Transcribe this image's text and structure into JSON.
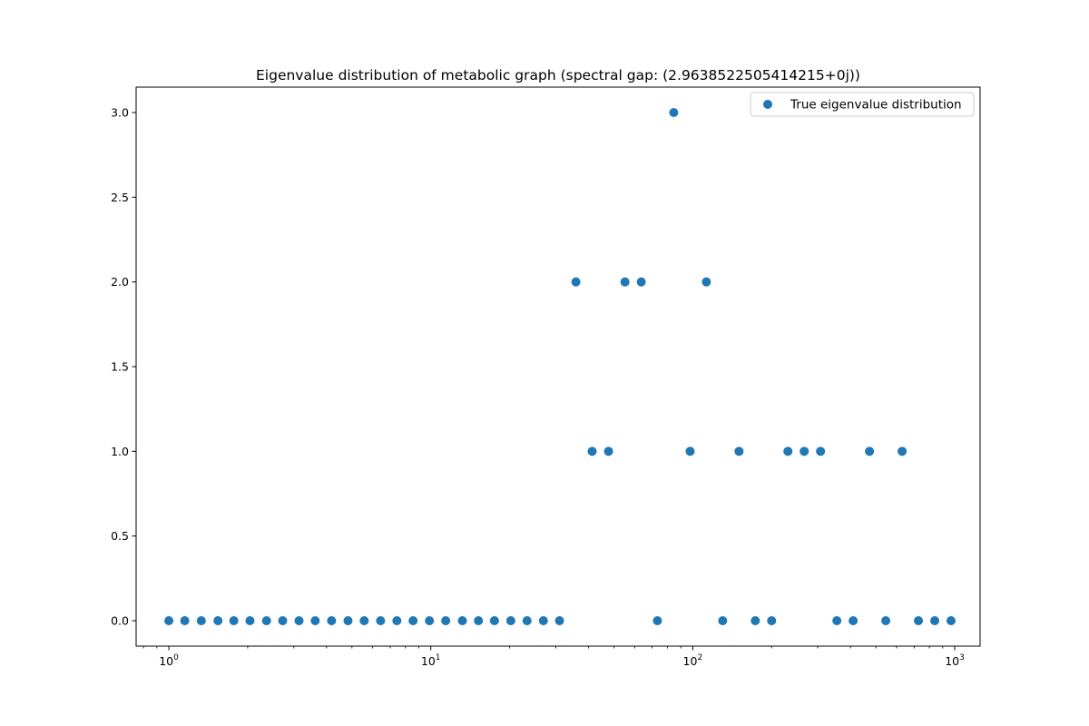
{
  "chart_data": {
    "type": "scatter",
    "title": "Eigenvalue distribution of metabolic graph (spectral gap: (2.9638522505414215+0j))",
    "xlabel": "",
    "ylabel": "",
    "xscale": "log",
    "xlim": [
      0.75,
      1250
    ],
    "ylim": [
      -0.15,
      3.15
    ],
    "grid": false,
    "legend_position": "top-right",
    "color": "#1f77b4",
    "y_ticks": [
      0.0,
      0.5,
      1.0,
      1.5,
      2.0,
      2.5,
      3.0
    ],
    "y_tick_labels": [
      "0.0",
      "0.5",
      "1.0",
      "1.5",
      "2.0",
      "2.5",
      "3.0"
    ],
    "x_ticks": [
      1,
      10,
      100,
      1000
    ],
    "x_tick_labels": [
      {
        "base": "10",
        "exp": "0"
      },
      {
        "base": "10",
        "exp": "1"
      },
      {
        "base": "10",
        "exp": "2"
      },
      {
        "base": "10",
        "exp": "3"
      }
    ],
    "series": [
      {
        "name": "True eigenvalue distribution",
        "points": [
          [
            1.0,
            0
          ],
          [
            1.15,
            0
          ],
          [
            1.33,
            0
          ],
          [
            1.54,
            0
          ],
          [
            1.77,
            0
          ],
          [
            2.04,
            0
          ],
          [
            2.36,
            0
          ],
          [
            2.72,
            0
          ],
          [
            3.14,
            0
          ],
          [
            3.62,
            0
          ],
          [
            4.18,
            0
          ],
          [
            4.83,
            0
          ],
          [
            5.57,
            0
          ],
          [
            6.43,
            0
          ],
          [
            7.42,
            0
          ],
          [
            8.56,
            0
          ],
          [
            9.88,
            0
          ],
          [
            11.4,
            0
          ],
          [
            13.2,
            0
          ],
          [
            15.2,
            0
          ],
          [
            17.5,
            0
          ],
          [
            20.2,
            0
          ],
          [
            23.3,
            0
          ],
          [
            26.9,
            0
          ],
          [
            31.0,
            0
          ],
          [
            35.8,
            2
          ],
          [
            41.3,
            1
          ],
          [
            47.7,
            1
          ],
          [
            55.1,
            2
          ],
          [
            63.6,
            2
          ],
          [
            73.3,
            0
          ],
          [
            84.6,
            3
          ],
          [
            97.7,
            1
          ],
          [
            112.7,
            2
          ],
          [
            130.1,
            0
          ],
          [
            150.2,
            1
          ],
          [
            173.3,
            0
          ],
          [
            200.0,
            0
          ],
          [
            230.8,
            1
          ],
          [
            266.4,
            1
          ],
          [
            307.5,
            1
          ],
          [
            354.9,
            0
          ],
          [
            409.6,
            0
          ],
          [
            472.8,
            1
          ],
          [
            545.6,
            0
          ],
          [
            629.8,
            1
          ],
          [
            726.8,
            0
          ],
          [
            838.9,
            0
          ],
          [
            968.2,
            0
          ]
        ]
      }
    ]
  }
}
